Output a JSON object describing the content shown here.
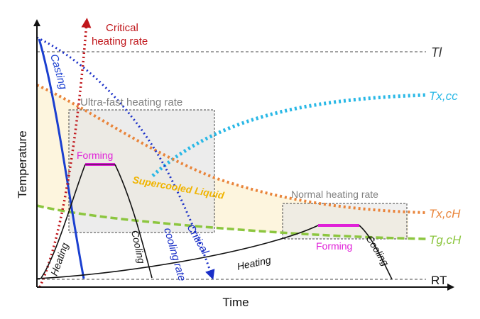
{
  "axes": {
    "x_label": "Time",
    "y_label": "Temperature"
  },
  "temperature_levels": {
    "liquidus": "Tl",
    "room_temp": "RT",
    "tx_cc": "Tx,cc",
    "tx_ch": "Tx,cH",
    "tg_ch": "Tg,cH"
  },
  "regions": {
    "ultra_fast_box": "Ultra-fast heating rate",
    "normal_box": "Normal heating rate",
    "supercooled": "Supercooled Liquid"
  },
  "curves": {
    "casting": "Casting",
    "critical_heating_rate_line1": "Critical",
    "critical_heating_rate_line2": "heating rate",
    "critical_cooling_rate_line1": "Critical",
    "critical_cooling_rate_line2": "cooling rate"
  },
  "process": {
    "ultra_fast": {
      "heating": "Heating",
      "forming": "Forming",
      "cooling": "Cooling"
    },
    "normal": {
      "heating": "Heating",
      "forming": "Forming",
      "cooling": "Cooling"
    }
  },
  "colors": {
    "axis": "#111111",
    "casting": "#1a3fd0",
    "critical_heating": "#c0161b",
    "critical_cooling": "#1a2fc8",
    "tx_cc": "#29b8e6",
    "tx_ch": "#e9843a",
    "tg_ch": "#8cc63f",
    "forming": "#e020d8",
    "supercooled_text": "#f0b400",
    "box_fill": "#e6e6e6",
    "box_stroke": "#444444",
    "box_text": "#7f7f7f",
    "region_fill": "#fdf4dc"
  }
}
